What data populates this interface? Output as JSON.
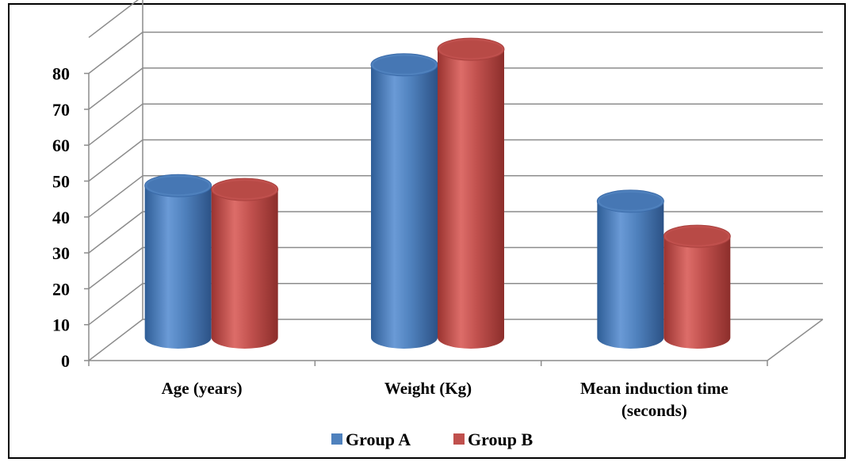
{
  "chart_data": {
    "type": "bar",
    "title": "",
    "categories": [
      "Age (years)",
      "Weight (Kg)",
      "Mean induction time (seconds)"
    ],
    "category_lines": [
      [
        "Age (years)"
      ],
      [
        "Weight (Kg)"
      ],
      [
        "Mean induction time",
        "(seconds)"
      ]
    ],
    "series": [
      {
        "name": "Group A",
        "color": "#4F81BD",
        "values": [
          39,
          70,
          35
        ]
      },
      {
        "name": "Group B",
        "color": "#C0504D",
        "values": [
          38,
          74,
          26
        ]
      }
    ],
    "yticks": [
      0,
      10,
      20,
      30,
      40,
      50,
      60,
      70,
      80
    ],
    "ylim": [
      0,
      80
    ],
    "grid": true,
    "legend": "bottom",
    "style": "3d-cylinder"
  }
}
